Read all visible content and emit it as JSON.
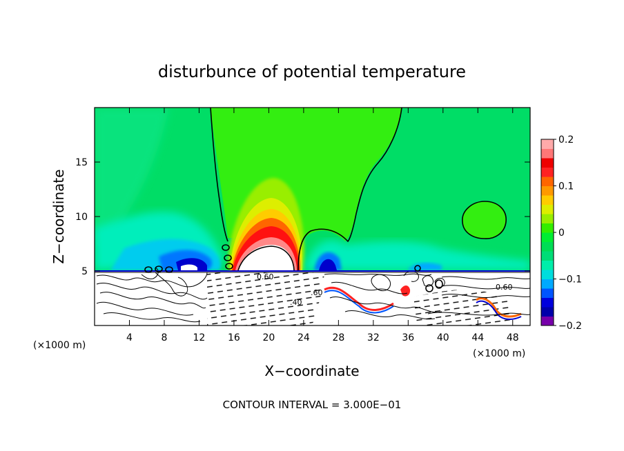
{
  "chart_data": {
    "type": "heatmap",
    "title": "disturbunce of potential temperature",
    "xlabel": "X−coordinate",
    "ylabel": "Z−coordinate",
    "x_unit_label": "(×1000 m)",
    "xlim": [
      0,
      50
    ],
    "ylim": [
      0,
      20
    ],
    "x_ticks": [
      4,
      8,
      12,
      16,
      20,
      24,
      28,
      32,
      36,
      40,
      44,
      48
    ],
    "x_tick_labels": [
      "4",
      "8",
      "12",
      "16",
      "20",
      "24",
      "28",
      "32",
      "36",
      "40",
      "44",
      "48"
    ],
    "y_ticks": [
      5,
      10,
      15
    ],
    "y_tick_labels": [
      "5",
      "10",
      "15"
    ],
    "colorbar": {
      "range": [
        -0.2,
        0.2
      ],
      "ticks": [
        0.2,
        0.1,
        0,
        -0.1,
        -0.2
      ],
      "tick_labels": [
        "0.2",
        "0.1",
        "0",
        "−0.1",
        "−0.2"
      ],
      "colors": [
        "#7700aa",
        "#0000aa",
        "#0000dd",
        "#0055ff",
        "#00aaff",
        "#00dddd",
        "#00eeaa",
        "#00dd77",
        "#00dd55",
        "#00ee33",
        "#33ee00",
        "#99ee00",
        "#ddee00",
        "#ffcc00",
        "#ff9900",
        "#ff6600",
        "#ff2222",
        "#ee0000",
        "#ff7777",
        "#ffaaaa"
      ]
    },
    "contour_interval_text": "CONTOUR INTERVAL = 3.000E−01",
    "contour_labels": [
      "0.60",
      ".40",
      ".60",
      "0.60"
    ],
    "colors": {
      "background_field": "#00dd66",
      "zero_band": "#33ee22",
      "warm_anomaly": "#ff2222",
      "cold_anomaly": "#0000cc"
    }
  }
}
